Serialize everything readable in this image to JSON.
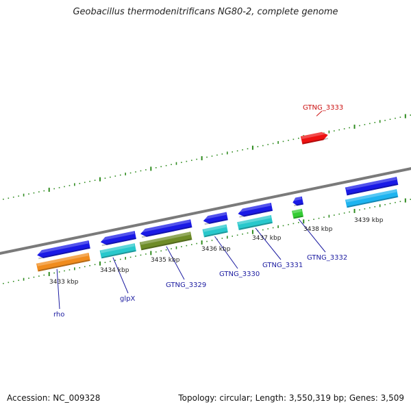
{
  "title": "Geobacillus thermodenitrificans NG80-2, complete genome",
  "accession": "Accession: NC_009328",
  "summary": "Topology: circular; Length: 3,550,319 bp; Genes: 3,509",
  "colors": {
    "backbone": "#7a7a7a",
    "ticks": "#2e8b1e",
    "forward_gene": "#1a1ae6",
    "label_blue": "#1a1aa0",
    "label_red": "#cc1111"
  },
  "kbp_labels": [
    "3433 kbp",
    "3434 kbp",
    "3435 kbp",
    "3436 kbp",
    "3437 kbp",
    "3438 kbp",
    "3439 kbp"
  ],
  "forward_genes": [
    {
      "start": 3432.75,
      "end": 3433.8
    },
    {
      "start": 3434.0,
      "end": 3434.7
    },
    {
      "start": 3434.78,
      "end": 3435.8
    },
    {
      "start": 3436.02,
      "end": 3436.5
    },
    {
      "start": 3436.7,
      "end": 3437.38
    },
    {
      "start": 3437.78,
      "end": 3437.98
    },
    {
      "start": 3438.82,
      "end": 3439.85
    }
  ],
  "rna_genes": [
    {
      "start": 3432.75,
      "end": 3433.8,
      "color": "#f08c1e"
    },
    {
      "start": 3434.0,
      "end": 3434.7,
      "color": "#28c8cc"
    },
    {
      "start": 3434.78,
      "end": 3435.8,
      "color": "#6e8c28"
    },
    {
      "start": 3436.02,
      "end": 3436.5,
      "color": "#28c8cc"
    },
    {
      "start": 3436.7,
      "end": 3437.38,
      "color": "#28c8cc"
    },
    {
      "start": 3437.78,
      "end": 3437.98,
      "color": "#33cc33"
    },
    {
      "start": 3438.82,
      "end": 3439.85,
      "color": "#1eb4f0"
    }
  ],
  "outer_gene": {
    "start": 3437.95,
    "end": 3438.48,
    "color": "#ee1111"
  },
  "gene_labels": [
    {
      "text": "rho",
      "gene_pos": 3433.15
    },
    {
      "text": "glpX",
      "gene_pos": 3434.25
    },
    {
      "text": "GTNG_3329",
      "gene_pos": 3435.3
    },
    {
      "text": "GTNG_3330",
      "gene_pos": 3436.25
    },
    {
      "text": "GTNG_3331",
      "gene_pos": 3437.05
    },
    {
      "text": "GTNG_3332",
      "gene_pos": 3437.9
    }
  ],
  "outer_label": {
    "text": "GTNG_3333",
    "gene_pos": 3438.25
  }
}
